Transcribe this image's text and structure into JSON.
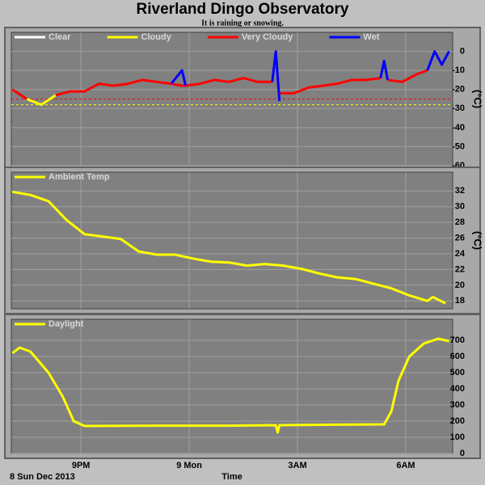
{
  "title": "Riverland Dingo Observatory",
  "subtitle": "It is raining or snowing.",
  "chart_data": [
    {
      "type": "line",
      "ylabel": "(°C)",
      "xlim": [
        19.07,
        31.3
      ],
      "xticks": [
        21,
        24,
        27,
        30
      ],
      "ylim": [
        -60,
        10
      ],
      "yticks": [
        0,
        -10,
        -20,
        -30,
        -40,
        -50,
        -60
      ],
      "grid": true,
      "legend": "top-left",
      "x": [
        19.1,
        19.5,
        19.9,
        20.3,
        20.7,
        21.1,
        21.5,
        21.9,
        22.3,
        22.7,
        23.1,
        23.5,
        23.8,
        23.9,
        24.3,
        24.7,
        25.1,
        25.5,
        25.9,
        26.3,
        26.4,
        26.5,
        26.9,
        27.3,
        27.7,
        28.1,
        28.5,
        28.9,
        29.3,
        29.4,
        29.5,
        29.9,
        30.3,
        30.6,
        30.8,
        31.0,
        31.2
      ],
      "series": [
        {
          "name": "Clear",
          "color": "#ffffff",
          "values": [
            null,
            null,
            null,
            null,
            null,
            null,
            null,
            null,
            null,
            null,
            null,
            null,
            null,
            null,
            null,
            null,
            null,
            null,
            null,
            null,
            null,
            null,
            null,
            null,
            null,
            null,
            null,
            null,
            null,
            null,
            null,
            null,
            null,
            null,
            null,
            null,
            null
          ]
        },
        {
          "name": "Cloudy",
          "color": "#ffff00",
          "values": [
            null,
            -25,
            -28,
            -23,
            null,
            null,
            null,
            null,
            null,
            null,
            null,
            null,
            null,
            null,
            null,
            null,
            null,
            null,
            null,
            null,
            null,
            null,
            null,
            null,
            null,
            null,
            null,
            null,
            null,
            null,
            null,
            null,
            null,
            null,
            null,
            null,
            null
          ]
        },
        {
          "name": "Very Cloudy",
          "color": "#ff0000",
          "values": [
            -20,
            -25,
            null,
            -23,
            -21,
            -21,
            -17,
            -18,
            -17,
            -15,
            -16,
            -17,
            -18,
            -18,
            -17,
            -15,
            -16,
            -14,
            -16,
            -16,
            null,
            -22,
            -22,
            -19,
            -18,
            -17,
            -15,
            -15,
            -14,
            null,
            -15,
            -16,
            -12,
            -10,
            null,
            null,
            null
          ]
        },
        {
          "name": "Wet",
          "color": "#0000ff",
          "values": [
            null,
            null,
            null,
            null,
            null,
            null,
            null,
            null,
            null,
            null,
            null,
            -17,
            -10,
            -18,
            null,
            null,
            null,
            null,
            null,
            -16,
            0,
            -26,
            null,
            null,
            null,
            null,
            null,
            null,
            -14,
            -5,
            -15,
            null,
            null,
            -10,
            0,
            -7,
            0
          ]
        }
      ],
      "reference_lines": [
        {
          "value": -25,
          "color": "#ff0000"
        },
        {
          "value": -28,
          "color": "#ffff00"
        }
      ]
    },
    {
      "type": "line",
      "ylabel": "(°C)",
      "xlim": [
        19.07,
        31.3
      ],
      "xticks": [
        21,
        24,
        27,
        30
      ],
      "ylim": [
        17,
        34.4
      ],
      "yticks": [
        18,
        20,
        22,
        24,
        26,
        28,
        30,
        32
      ],
      "grid": true,
      "legend": "top-left",
      "x": [
        19.1,
        19.6,
        20.1,
        20.6,
        21.1,
        21.6,
        22.1,
        22.6,
        23.1,
        23.6,
        24.1,
        24.6,
        25.1,
        25.6,
        26.1,
        26.6,
        27.1,
        27.6,
        28.1,
        28.6,
        29.1,
        29.6,
        30.1,
        30.6,
        30.75,
        31.1
      ],
      "series": [
        {
          "name": "Ambient Temp",
          "color": "#ffff00",
          "values": [
            31.9,
            31.5,
            30.7,
            28.3,
            26.5,
            26.2,
            25.9,
            24.3,
            23.9,
            23.9,
            23.4,
            23.0,
            22.9,
            22.5,
            22.7,
            22.5,
            22.1,
            21.5,
            21.0,
            20.8,
            20.2,
            19.6,
            18.7,
            18.0,
            18.5,
            17.7
          ]
        }
      ]
    },
    {
      "type": "line",
      "xlabel": "Time",
      "start_label": "8 Sun Dec 2013",
      "xlim": [
        19.07,
        31.3
      ],
      "xticks": [
        {
          "value": 21,
          "label": "9PM"
        },
        {
          "value": 24,
          "label": "9 Mon"
        },
        {
          "value": 27,
          "label": "3AM"
        },
        {
          "value": 30,
          "label": "6AM"
        }
      ],
      "ylim": [
        0,
        830
      ],
      "yticks": [
        0,
        100,
        200,
        300,
        400,
        500,
        600,
        700
      ],
      "grid": true,
      "legend": "top-left",
      "x": [
        19.1,
        19.3,
        19.6,
        20.1,
        20.5,
        20.8,
        21.1,
        23,
        25,
        26.4,
        26.45,
        26.5,
        28,
        29.4,
        29.6,
        29.8,
        30.1,
        30.5,
        30.9,
        31.2
      ],
      "series": [
        {
          "name": "Daylight",
          "color": "#ffff00",
          "values": [
            620,
            655,
            630,
            500,
            350,
            200,
            170,
            172,
            172,
            175,
            130,
            175,
            178,
            180,
            260,
            450,
            600,
            680,
            710,
            695
          ]
        }
      ]
    }
  ]
}
